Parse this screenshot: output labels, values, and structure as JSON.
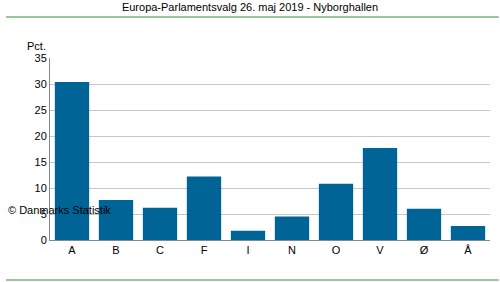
{
  "chart_data": {
    "type": "bar",
    "title": "Europa-Parlamentsvalg 26. maj 2019 - Nyborghallen",
    "y_label": "Pct.",
    "source": "© Danmarks Statistik",
    "categories": [
      "A",
      "B",
      "C",
      "F",
      "I",
      "N",
      "O",
      "V",
      "Ø",
      "Å"
    ],
    "values": [
      30.4,
      7.7,
      6.2,
      12.2,
      1.8,
      4.5,
      10.8,
      17.7,
      6.0,
      2.7
    ],
    "color": "#006496",
    "ylim": [
      0,
      35
    ],
    "yticks": [
      0,
      5,
      10,
      15,
      20,
      25,
      30,
      35
    ],
    "grid": true
  }
}
